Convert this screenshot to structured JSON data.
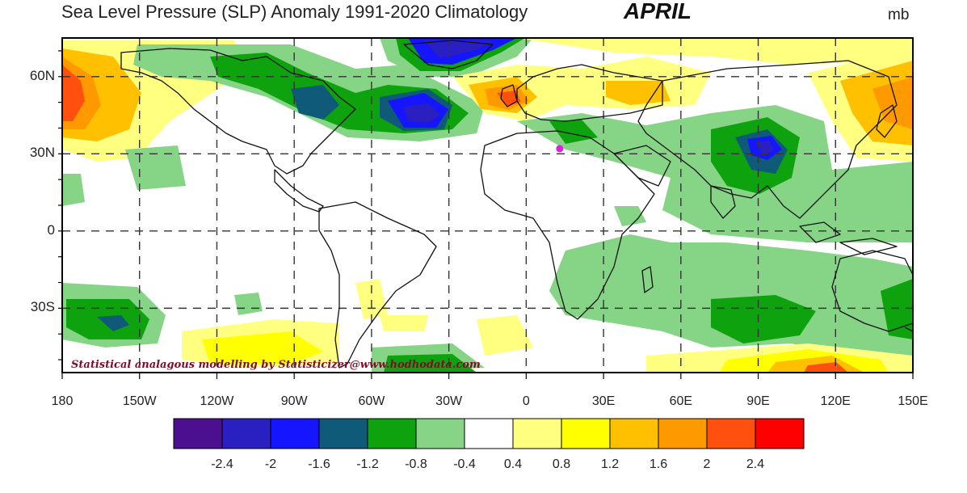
{
  "title": "Sea Level Pressure (SLP) Anomaly  1991-2020 Climatology",
  "month_label": "APRIL",
  "units": "mb",
  "credit": "Statistical analagous modelling by Statisticizer@www.hodhodata.com",
  "map": {
    "projection": "cylindrical-equidistant",
    "lon_range": [
      180,
      150
    ],
    "lat_range": [
      -55,
      75
    ],
    "grid": true,
    "lat_ticks": [
      {
        "lat": 60,
        "label": "60N"
      },
      {
        "lat": 30,
        "label": "30N"
      },
      {
        "lat": 0,
        "label": "0"
      },
      {
        "lat": -30,
        "label": "30S"
      }
    ],
    "lon_ticks": [
      {
        "lon": -180,
        "label": "180"
      },
      {
        "lon": -150,
        "label": "150W"
      },
      {
        "lon": -120,
        "label": "120W"
      },
      {
        "lon": -90,
        "label": "90W"
      },
      {
        "lon": -60,
        "label": "60W"
      },
      {
        "lon": -30,
        "label": "30W"
      },
      {
        "lon": 0,
        "label": "0"
      },
      {
        "lon": 30,
        "label": "30E"
      },
      {
        "lon": 60,
        "label": "60E"
      },
      {
        "lon": 90,
        "label": "90E"
      },
      {
        "lon": 120,
        "label": "120E"
      },
      {
        "lon": 150,
        "label": "150E"
      }
    ],
    "marker": {
      "lon": 13,
      "lat": 32,
      "color": "#e020e0"
    }
  },
  "colorbar": {
    "colors": [
      "#4b0f8f",
      "#2a1fc0",
      "#1515ff",
      "#0f5a78",
      "#0ea20e",
      "#86d486",
      "#ffffff",
      "#ffff80",
      "#ffff00",
      "#ffc000",
      "#ff9900",
      "#ff5010",
      "#ff0000"
    ],
    "labels": [
      "-2.4",
      "-2",
      "-1.6",
      "-1.2",
      "-0.8",
      "-0.4",
      "0.4",
      "0.8",
      "1.2",
      "1.6",
      "2",
      "2.4"
    ]
  },
  "colors": {
    "neg_weak": "#86d486",
    "neg_mod": "#0ea20e",
    "neg_strong": "#0f5a78",
    "neg_vstrong": "#1515ff",
    "neg_max": "#2a1fc0",
    "pos_weak": "#ffff80",
    "pos_mod": "#ffff00",
    "pos_strong": "#ffc000",
    "pos_vstrong": "#ff9900",
    "pos_max": "#ff5010",
    "pos_peak": "#ff0000"
  }
}
